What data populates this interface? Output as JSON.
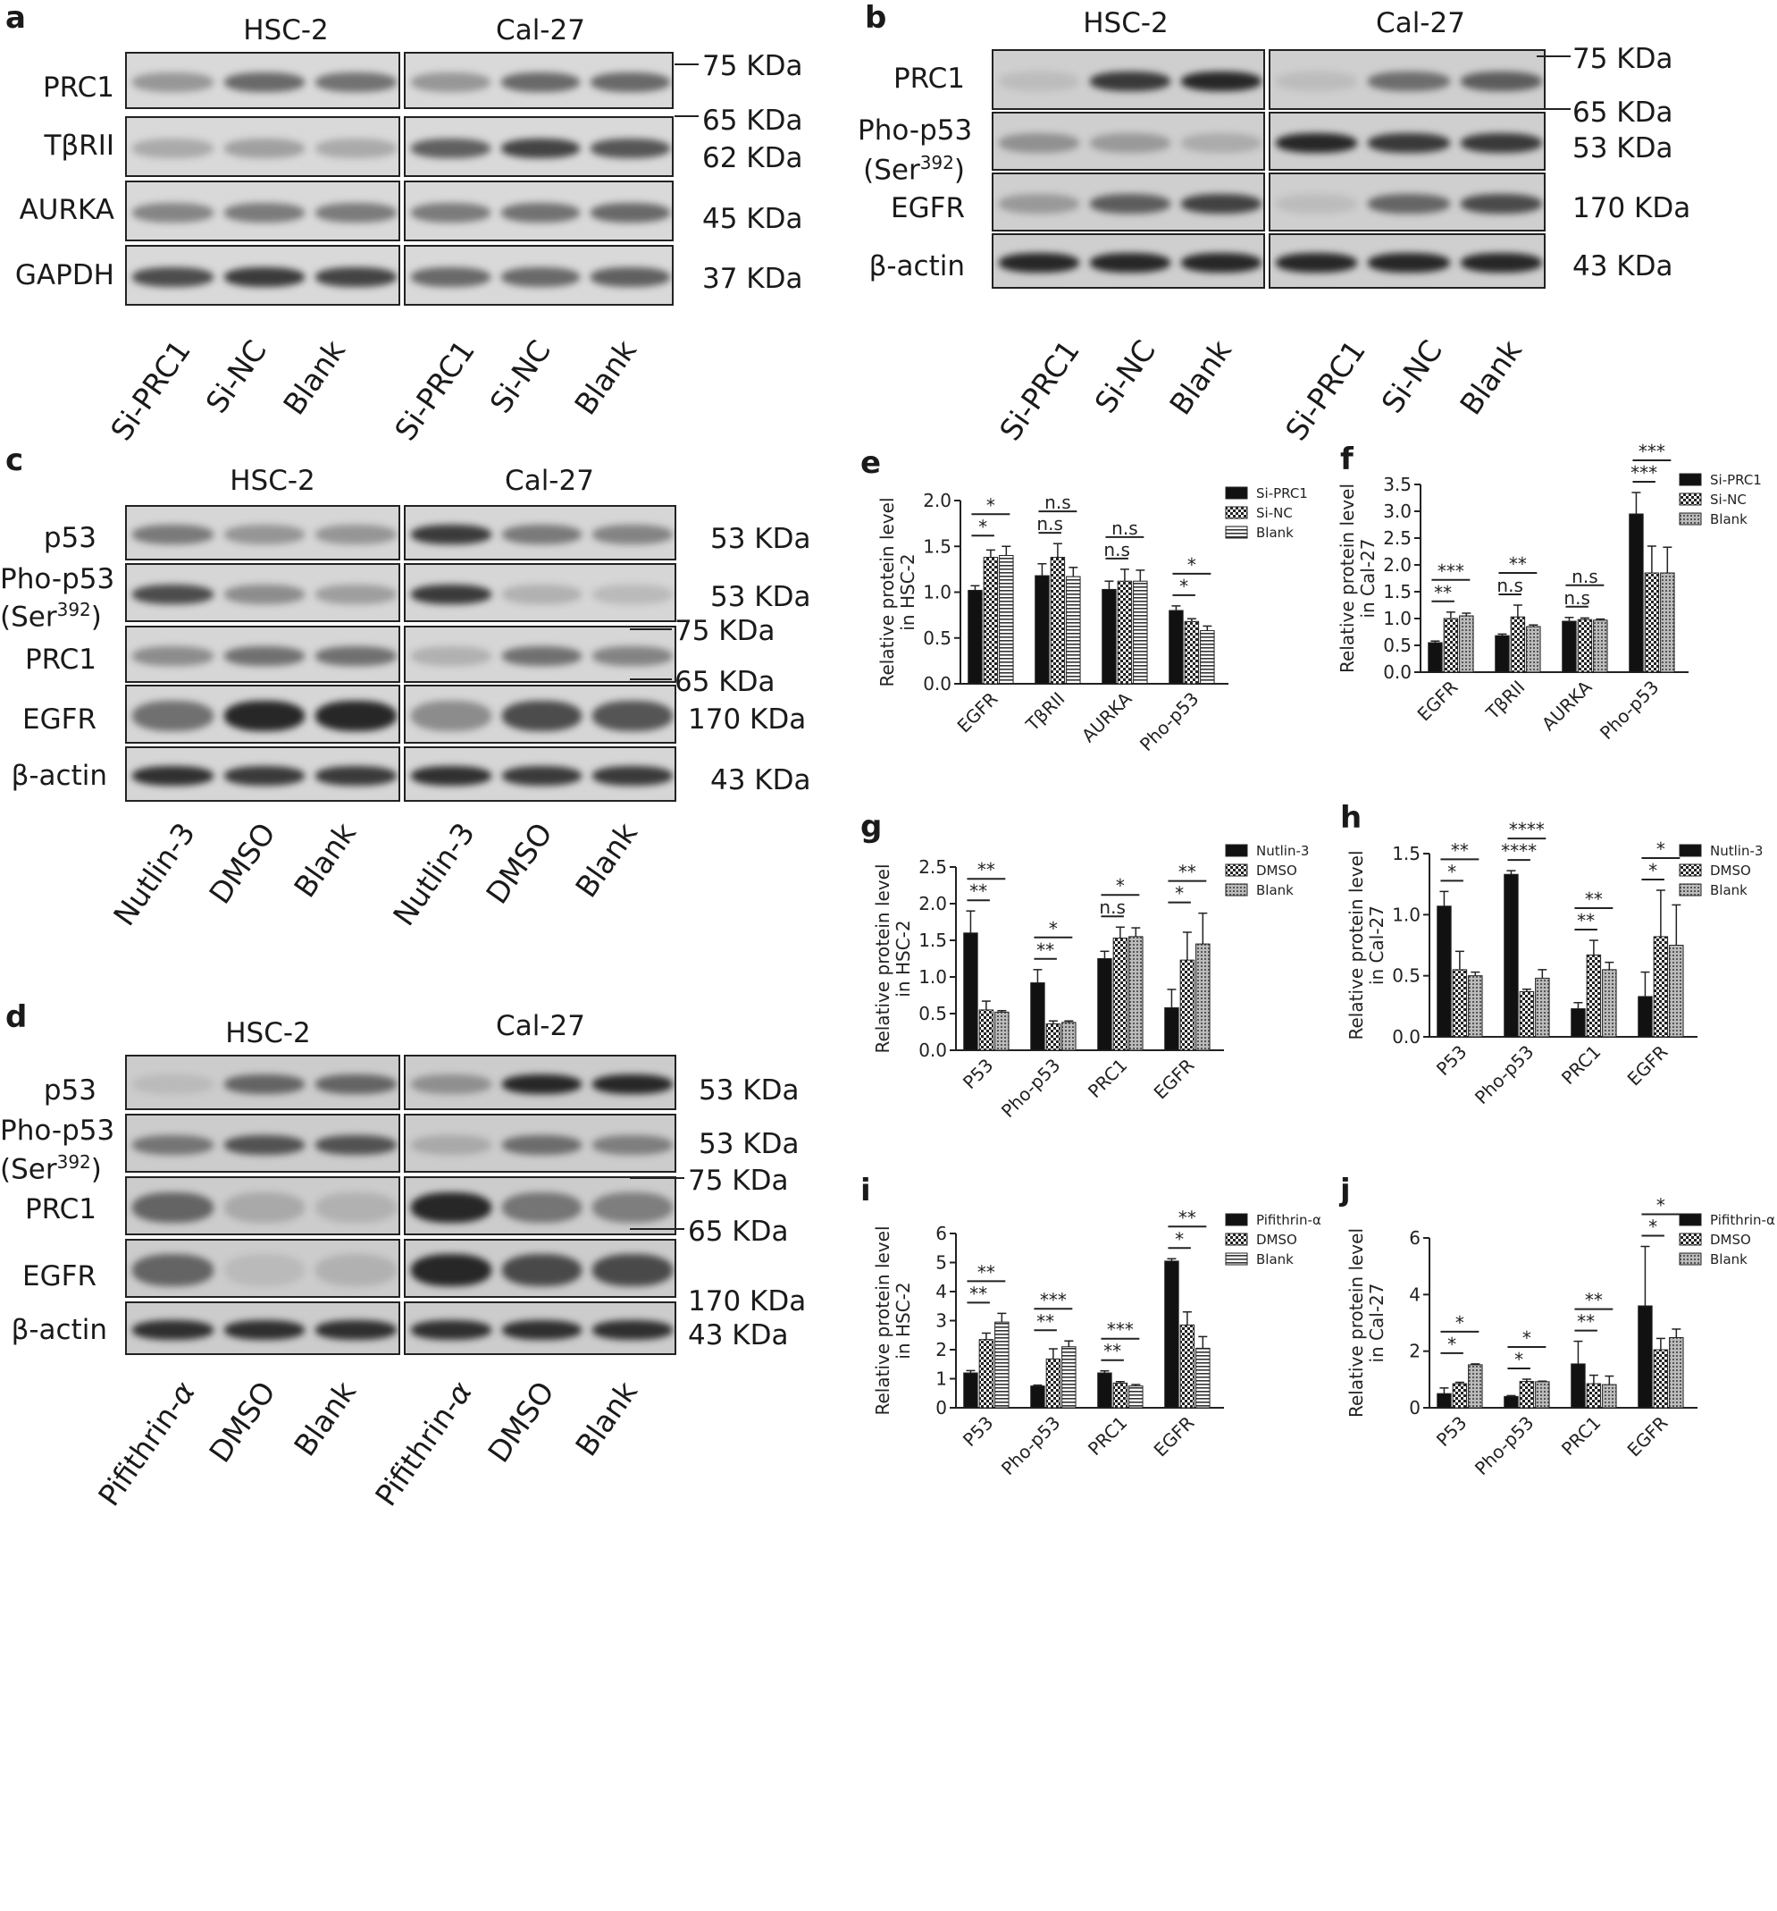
{
  "panels": {
    "a": {
      "label": "a",
      "groups": [
        "HSC-2",
        "Cal-27"
      ],
      "rows": [
        "PRC1",
        "TβRII",
        "AURKA",
        "GAPDH"
      ],
      "markers": [
        "75 KDa",
        "65 KDa",
        "62 KDa",
        "45 KDa",
        "37 KDa"
      ],
      "lanes": [
        "Si-PRC1",
        "Si-NC",
        "Blank",
        "Si-PRC1",
        "Si-NC",
        "Blank"
      ]
    },
    "b": {
      "label": "b",
      "groups": [
        "HSC-2",
        "Cal-27"
      ],
      "rows": [
        "PRC1",
        "Pho-p53",
        "(Ser",
        "392",
        ")",
        "EGFR",
        "β-actin"
      ],
      "markers": [
        "75 KDa",
        "65 KDa",
        "53 KDa",
        "170 KDa",
        "43 KDa"
      ],
      "lanes": [
        "Si-PRC1",
        "Si-NC",
        "Blank",
        "Si-PRC1",
        "Si-NC",
        "Blank"
      ]
    },
    "c": {
      "label": "c",
      "groups": [
        "HSC-2",
        "Cal-27"
      ],
      "rows": [
        "p53",
        "Pho-p53",
        "(Ser",
        "392",
        ")",
        "PRC1",
        "EGFR",
        "β-actin"
      ],
      "markers": [
        "53 KDa",
        "53 KDa",
        "75 KDa",
        "65 KDa",
        "170 KDa",
        "43 KDa"
      ],
      "lanes": [
        "Nutlin-3",
        "DMSO",
        "Blank",
        "Nutlin-3",
        "DMSO",
        "Blank"
      ]
    },
    "d": {
      "label": "d",
      "groups": [
        "HSC-2",
        "Cal-27"
      ],
      "rows": [
        "p53",
        "Pho-p53",
        "(Ser",
        "392",
        ")",
        "PRC1",
        "EGFR",
        "β-actin"
      ],
      "markers": [
        "53 KDa",
        "53 KDa",
        "75 KDa",
        "65 KDa",
        "170 KDa",
        "43 KDa"
      ],
      "lanes": [
        "Pifithrin-",
        "α",
        "DMSO",
        "Blank",
        "Pifithrin-",
        "α",
        "DMSO",
        "Blank"
      ]
    }
  },
  "chart_data": [
    {
      "panel": "e",
      "type": "bar",
      "ylabel": [
        "Relative protein level",
        "in HSC-2"
      ],
      "categories": [
        "EGFR",
        "TβRII",
        "AURKA",
        "Pho-p53"
      ],
      "ylim": [
        0,
        2.0
      ],
      "yticks": [
        "0.0",
        "0.5",
        "1.0",
        "1.5",
        "2.0"
      ],
      "series": [
        {
          "name": "Si-PRC1",
          "values": [
            1.02,
            1.18,
            1.03,
            0.8
          ],
          "err": [
            0.05,
            0.13,
            0.09,
            0.05
          ],
          "pattern": "solid"
        },
        {
          "name": "Si-NC",
          "values": [
            1.38,
            1.38,
            1.12,
            0.68
          ],
          "err": [
            0.08,
            0.15,
            0.13,
            0.03
          ],
          "pattern": "checker"
        },
        {
          "name": "Blank",
          "values": [
            1.4,
            1.17,
            1.12,
            0.58
          ],
          "err": [
            0.1,
            0.1,
            0.12,
            0.05
          ],
          "pattern": "hlines"
        }
      ],
      "sig": [
        {
          "c": 0,
          "a": 0,
          "b": 1,
          "text": "*"
        },
        {
          "c": 0,
          "a": 0,
          "b": 2,
          "text": "*"
        },
        {
          "c": 1,
          "a": 0,
          "b": 1,
          "text": "n.s"
        },
        {
          "c": 1,
          "a": 0,
          "b": 2,
          "text": "n.s"
        },
        {
          "c": 2,
          "a": 0,
          "b": 1,
          "text": "n.s"
        },
        {
          "c": 2,
          "a": 0,
          "b": 2,
          "text": "n.s"
        },
        {
          "c": 3,
          "a": 0,
          "b": 1,
          "text": "*"
        },
        {
          "c": 3,
          "a": 0,
          "b": 2,
          "text": "*"
        }
      ]
    },
    {
      "panel": "f",
      "type": "bar",
      "ylabel": [
        "Relative protein level",
        "in Cal-27"
      ],
      "categories": [
        "EGFR",
        "TβRII",
        "AURKA",
        "Pho-p53"
      ],
      "ylim": [
        0,
        3.5
      ],
      "yticks": [
        "0.0",
        "0.5",
        "1.0",
        "1.5",
        "2.0",
        "2.5",
        "3.0",
        "3.5"
      ],
      "series": [
        {
          "name": "Si-PRC1",
          "values": [
            0.55,
            0.68,
            0.95,
            2.95
          ],
          "err": [
            0.03,
            0.03,
            0.07,
            0.4
          ],
          "pattern": "solid"
        },
        {
          "name": "Si-NC",
          "values": [
            1.0,
            1.03,
            0.98,
            1.85
          ],
          "err": [
            0.12,
            0.22,
            0.03,
            0.5
          ],
          "pattern": "checker"
        },
        {
          "name": "Blank",
          "values": [
            1.05,
            0.85,
            0.97,
            1.85
          ],
          "err": [
            0.05,
            0.03,
            0.02,
            0.48
          ],
          "pattern": "dots"
        }
      ],
      "sig": [
        {
          "c": 0,
          "a": 0,
          "b": 1,
          "text": "**"
        },
        {
          "c": 0,
          "a": 0,
          "b": 2,
          "text": "***"
        },
        {
          "c": 1,
          "a": 0,
          "b": 1,
          "text": "n.s"
        },
        {
          "c": 1,
          "a": 0,
          "b": 2,
          "text": "**"
        },
        {
          "c": 2,
          "a": 0,
          "b": 1,
          "text": "n.s"
        },
        {
          "c": 2,
          "a": 0,
          "b": 2,
          "text": "n.s"
        },
        {
          "c": 3,
          "a": 0,
          "b": 1,
          "text": "***"
        },
        {
          "c": 3,
          "a": 0,
          "b": 2,
          "text": "***"
        }
      ]
    },
    {
      "panel": "g",
      "type": "bar",
      "ylabel": [
        "Relative protein level",
        "in HSC-2"
      ],
      "categories": [
        "P53",
        "Pho-p53",
        "PRC1",
        "EGFR"
      ],
      "ylim": [
        0,
        2.5
      ],
      "yticks": [
        "0.0",
        "0.5",
        "1.0",
        "1.5",
        "2.0",
        "2.5"
      ],
      "series": [
        {
          "name": "Nutlin-3",
          "values": [
            1.6,
            0.92,
            1.25,
            0.58
          ],
          "err": [
            0.3,
            0.18,
            0.1,
            0.25
          ],
          "pattern": "solid"
        },
        {
          "name": "DMSO",
          "values": [
            0.55,
            0.36,
            1.53,
            1.23
          ],
          "err": [
            0.12,
            0.04,
            0.15,
            0.38
          ],
          "pattern": "checker"
        },
        {
          "name": "Blank",
          "values": [
            0.52,
            0.38,
            1.55,
            1.45
          ],
          "err": [
            0.02,
            0.02,
            0.12,
            0.42
          ],
          "pattern": "dots"
        }
      ],
      "sig": [
        {
          "c": 0,
          "a": 0,
          "b": 1,
          "text": "**"
        },
        {
          "c": 0,
          "a": 0,
          "b": 2,
          "text": "**"
        },
        {
          "c": 1,
          "a": 0,
          "b": 1,
          "text": "**"
        },
        {
          "c": 1,
          "a": 0,
          "b": 2,
          "text": "*"
        },
        {
          "c": 2,
          "a": 0,
          "b": 1,
          "text": "n.s"
        },
        {
          "c": 2,
          "a": 0,
          "b": 2,
          "text": "*"
        },
        {
          "c": 3,
          "a": 0,
          "b": 1,
          "text": "*"
        },
        {
          "c": 3,
          "a": 0,
          "b": 2,
          "text": "**"
        }
      ]
    },
    {
      "panel": "h",
      "type": "bar",
      "ylabel": [
        "Relative protein level",
        "in Cal-27"
      ],
      "categories": [
        "P53",
        "Pho-p53",
        "PRC1",
        "EGFR"
      ],
      "ylim": [
        0,
        1.5
      ],
      "yticks": [
        "0.0",
        "0.5",
        "1.0",
        "1.5"
      ],
      "series": [
        {
          "name": "Nutlin-3",
          "values": [
            1.07,
            1.33,
            0.23,
            0.33
          ],
          "err": [
            0.12,
            0.03,
            0.05,
            0.2
          ],
          "pattern": "solid"
        },
        {
          "name": "DMSO",
          "values": [
            0.55,
            0.37,
            0.67,
            0.82
          ],
          "err": [
            0.15,
            0.02,
            0.12,
            0.38
          ],
          "pattern": "checker"
        },
        {
          "name": "Blank",
          "values": [
            0.5,
            0.48,
            0.55,
            0.75
          ],
          "err": [
            0.03,
            0.07,
            0.06,
            0.33
          ],
          "pattern": "dots"
        }
      ],
      "sig": [
        {
          "c": 0,
          "a": 0,
          "b": 1,
          "text": "*"
        },
        {
          "c": 0,
          "a": 0,
          "b": 2,
          "text": "**"
        },
        {
          "c": 1,
          "a": 0,
          "b": 1,
          "text": "****"
        },
        {
          "c": 1,
          "a": 0,
          "b": 2,
          "text": "****"
        },
        {
          "c": 2,
          "a": 0,
          "b": 1,
          "text": "**"
        },
        {
          "c": 2,
          "a": 0,
          "b": 2,
          "text": "**"
        },
        {
          "c": 3,
          "a": 0,
          "b": 1,
          "text": "*"
        },
        {
          "c": 3,
          "a": 0,
          "b": 2,
          "text": "*"
        }
      ]
    },
    {
      "panel": "i",
      "type": "bar",
      "ylabel": [
        "Relative protein level",
        "in HSC-2"
      ],
      "categories": [
        "P53",
        "Pho-p53",
        "PRC1",
        "EGFR"
      ],
      "ylim": [
        0,
        6
      ],
      "yticks": [
        "0",
        "1",
        "2",
        "3",
        "4",
        "5",
        "6"
      ],
      "series": [
        {
          "name": "Pifithrin-α",
          "values": [
            1.2,
            0.75,
            1.2,
            5.05
          ],
          "err": [
            0.08,
            0.03,
            0.07,
            0.08
          ],
          "pattern": "solid"
        },
        {
          "name": "DMSO",
          "values": [
            2.35,
            1.68,
            0.85,
            2.85
          ],
          "err": [
            0.22,
            0.35,
            0.05,
            0.45
          ],
          "pattern": "checker"
        },
        {
          "name": "Blank",
          "values": [
            2.95,
            2.1,
            0.75,
            2.05
          ],
          "err": [
            0.3,
            0.2,
            0.05,
            0.4
          ],
          "pattern": "hlines"
        }
      ],
      "sig": [
        {
          "c": 0,
          "a": 0,
          "b": 1,
          "text": "**"
        },
        {
          "c": 0,
          "a": 0,
          "b": 2,
          "text": "**"
        },
        {
          "c": 1,
          "a": 0,
          "b": 1,
          "text": "**"
        },
        {
          "c": 1,
          "a": 0,
          "b": 2,
          "text": "***"
        },
        {
          "c": 2,
          "a": 0,
          "b": 1,
          "text": "**"
        },
        {
          "c": 2,
          "a": 0,
          "b": 2,
          "text": "***"
        },
        {
          "c": 3,
          "a": 0,
          "b": 1,
          "text": "*"
        },
        {
          "c": 3,
          "a": 0,
          "b": 2,
          "text": "**"
        }
      ]
    },
    {
      "panel": "j",
      "type": "bar",
      "ylabel": [
        "Relative protein level",
        "in Cal-27"
      ],
      "categories": [
        "P53",
        "Pho-p53",
        "PRC1",
        "EGFR"
      ],
      "ylim": [
        0,
        6
      ],
      "yticks": [
        "0",
        "2",
        "4",
        "6"
      ],
      "series": [
        {
          "name": "Pifithrin-α",
          "values": [
            0.5,
            0.4,
            1.55,
            3.6
          ],
          "err": [
            0.2,
            0.03,
            0.8,
            2.1
          ],
          "pattern": "solid"
        },
        {
          "name": "DMSO",
          "values": [
            0.85,
            0.93,
            0.85,
            2.05
          ],
          "err": [
            0.05,
            0.08,
            0.3,
            0.4
          ],
          "pattern": "checker"
        },
        {
          "name": "Blank",
          "values": [
            1.52,
            0.92,
            0.82,
            2.48
          ],
          "err": [
            0.03,
            0.02,
            0.3,
            0.3
          ],
          "pattern": "dots"
        }
      ],
      "sig": [
        {
          "c": 0,
          "a": 0,
          "b": 1,
          "text": "*"
        },
        {
          "c": 0,
          "a": 0,
          "b": 2,
          "text": "*"
        },
        {
          "c": 1,
          "a": 0,
          "b": 1,
          "text": "*"
        },
        {
          "c": 1,
          "a": 0,
          "b": 2,
          "text": "*"
        },
        {
          "c": 2,
          "a": 0,
          "b": 1,
          "text": "**"
        },
        {
          "c": 2,
          "a": 0,
          "b": 2,
          "text": "**"
        },
        {
          "c": 3,
          "a": 0,
          "b": 1,
          "text": "*"
        },
        {
          "c": 3,
          "a": 0,
          "b": 2,
          "text": "*"
        }
      ]
    }
  ]
}
